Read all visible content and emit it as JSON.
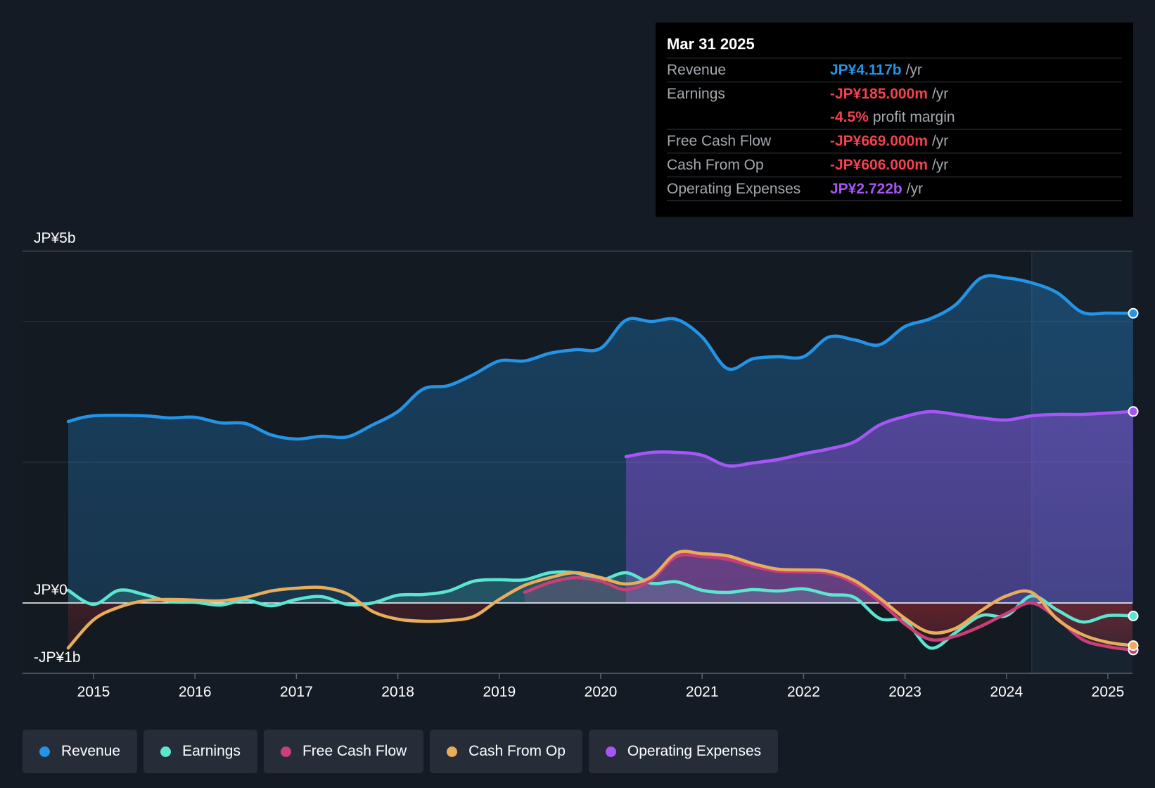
{
  "colors": {
    "revenue": "#2394e6",
    "earnings": "#5ce6cf",
    "fcf": "#c93f7a",
    "cfo": "#e8ad5c",
    "opex": "#a855f7",
    "negative": "#f2424f",
    "muted": "#a4a9b0",
    "background": "#151b24"
  },
  "tooltip": {
    "date": "Mar 31 2025",
    "rows": [
      {
        "label": "Revenue",
        "value": "JP¥4.117b",
        "unit": "/yr",
        "color": "#2394e6"
      },
      {
        "label": "Earnings",
        "value": "-JP¥185.000m",
        "unit": "/yr",
        "color": "#f2424f"
      },
      {
        "label": "",
        "value": "-4.5%",
        "unit": "profit margin",
        "color": "#f2424f"
      },
      {
        "label": "Free Cash Flow",
        "value": "-JP¥669.000m",
        "unit": "/yr",
        "color": "#f2424f"
      },
      {
        "label": "Cash From Op",
        "value": "-JP¥606.000m",
        "unit": "/yr",
        "color": "#f2424f"
      },
      {
        "label": "Operating Expenses",
        "value": "JP¥2.722b",
        "unit": "/yr",
        "color": "#a855f7"
      }
    ]
  },
  "legend": [
    {
      "label": "Revenue",
      "color": "#2394e6"
    },
    {
      "label": "Earnings",
      "color": "#5ce6cf"
    },
    {
      "label": "Free Cash Flow",
      "color": "#c93f7a"
    },
    {
      "label": "Cash From Op",
      "color": "#e8ad5c"
    },
    {
      "label": "Operating Expenses",
      "color": "#a855f7"
    }
  ],
  "chart_data": {
    "type": "line",
    "title": "",
    "xlabel": "",
    "ylabel": "",
    "units": "JP¥ billions",
    "xlim": [
      2014.5,
      2025.25
    ],
    "ylim": [
      -1,
      5
    ],
    "past_region_start": 2024.25,
    "ytick_labels": [
      {
        "value": 5,
        "label": "JP¥5b"
      },
      {
        "value": 0,
        "label": "JP¥0"
      },
      {
        "value": -1,
        "label": "-JP¥1b"
      }
    ],
    "gridlines": [
      5,
      4,
      2,
      -1
    ],
    "xticks": [
      {
        "value": 2015,
        "label": "2015"
      },
      {
        "value": 2016,
        "label": "2016"
      },
      {
        "value": 2017,
        "label": "2017"
      },
      {
        "value": 2018,
        "label": "2018"
      },
      {
        "value": 2019,
        "label": "2019"
      },
      {
        "value": 2020,
        "label": "2020"
      },
      {
        "value": 2021,
        "label": "2021"
      },
      {
        "value": 2022,
        "label": "2022"
      },
      {
        "value": 2023,
        "label": "2023"
      },
      {
        "value": 2024,
        "label": "2024"
      },
      {
        "value": 2025,
        "label": "2025"
      }
    ],
    "series": [
      {
        "key": "revenue",
        "name": "Revenue",
        "points": [
          [
            2014.75,
            2.58
          ],
          [
            2015.0,
            2.66
          ],
          [
            2015.5,
            2.66
          ],
          [
            2015.75,
            2.63
          ],
          [
            2016.0,
            2.64
          ],
          [
            2016.25,
            2.56
          ],
          [
            2016.5,
            2.55
          ],
          [
            2016.75,
            2.39
          ],
          [
            2017.0,
            2.33
          ],
          [
            2017.25,
            2.37
          ],
          [
            2017.5,
            2.36
          ],
          [
            2017.75,
            2.53
          ],
          [
            2018.0,
            2.72
          ],
          [
            2018.25,
            3.04
          ],
          [
            2018.5,
            3.09
          ],
          [
            2018.75,
            3.25
          ],
          [
            2019.0,
            3.44
          ],
          [
            2019.25,
            3.44
          ],
          [
            2019.5,
            3.55
          ],
          [
            2019.75,
            3.6
          ],
          [
            2020.0,
            3.62
          ],
          [
            2020.25,
            4.02
          ],
          [
            2020.5,
            4.0
          ],
          [
            2020.75,
            4.03
          ],
          [
            2021.0,
            3.78
          ],
          [
            2021.25,
            3.33
          ],
          [
            2021.5,
            3.47
          ],
          [
            2021.75,
            3.5
          ],
          [
            2022.0,
            3.5
          ],
          [
            2022.25,
            3.78
          ],
          [
            2022.5,
            3.74
          ],
          [
            2022.75,
            3.67
          ],
          [
            2023.0,
            3.93
          ],
          [
            2023.25,
            4.04
          ],
          [
            2023.5,
            4.24
          ],
          [
            2023.75,
            4.62
          ],
          [
            2024.0,
            4.62
          ],
          [
            2024.25,
            4.55
          ],
          [
            2024.5,
            4.41
          ],
          [
            2024.75,
            4.13
          ],
          [
            2025.0,
            4.12
          ],
          [
            2025.25,
            4.117
          ]
        ]
      },
      {
        "key": "opex",
        "name": "Operating Expenses",
        "points": [
          [
            2020.25,
            2.08
          ],
          [
            2020.5,
            2.14
          ],
          [
            2020.75,
            2.14
          ],
          [
            2021.0,
            2.1
          ],
          [
            2021.25,
            1.95
          ],
          [
            2021.5,
            1.99
          ],
          [
            2021.75,
            2.04
          ],
          [
            2022.0,
            2.12
          ],
          [
            2022.25,
            2.19
          ],
          [
            2022.5,
            2.29
          ],
          [
            2022.75,
            2.53
          ],
          [
            2023.0,
            2.65
          ],
          [
            2023.25,
            2.72
          ],
          [
            2023.5,
            2.68
          ],
          [
            2023.75,
            2.63
          ],
          [
            2024.0,
            2.6
          ],
          [
            2024.25,
            2.66
          ],
          [
            2024.5,
            2.68
          ],
          [
            2024.75,
            2.68
          ],
          [
            2025.0,
            2.7
          ],
          [
            2025.25,
            2.722
          ]
        ]
      },
      {
        "key": "earnings",
        "name": "Earnings",
        "points": [
          [
            2014.75,
            0.18
          ],
          [
            2015.0,
            -0.02
          ],
          [
            2015.25,
            0.18
          ],
          [
            2015.5,
            0.12
          ],
          [
            2015.75,
            0.02
          ],
          [
            2016.0,
            0.01
          ],
          [
            2016.25,
            -0.03
          ],
          [
            2016.5,
            0.04
          ],
          [
            2016.75,
            -0.04
          ],
          [
            2017.0,
            0.05
          ],
          [
            2017.25,
            0.09
          ],
          [
            2017.5,
            -0.02
          ],
          [
            2017.75,
            0.0
          ],
          [
            2018.0,
            0.11
          ],
          [
            2018.25,
            0.12
          ],
          [
            2018.5,
            0.17
          ],
          [
            2018.75,
            0.31
          ],
          [
            2019.0,
            0.33
          ],
          [
            2019.25,
            0.33
          ],
          [
            2019.5,
            0.43
          ],
          [
            2019.75,
            0.43
          ],
          [
            2020.0,
            0.33
          ],
          [
            2020.25,
            0.43
          ],
          [
            2020.5,
            0.28
          ],
          [
            2020.75,
            0.3
          ],
          [
            2021.0,
            0.18
          ],
          [
            2021.25,
            0.15
          ],
          [
            2021.5,
            0.19
          ],
          [
            2021.75,
            0.17
          ],
          [
            2022.0,
            0.2
          ],
          [
            2022.25,
            0.12
          ],
          [
            2022.5,
            0.08
          ],
          [
            2022.75,
            -0.22
          ],
          [
            2023.0,
            -0.26
          ],
          [
            2023.25,
            -0.64
          ],
          [
            2023.5,
            -0.42
          ],
          [
            2023.75,
            -0.18
          ],
          [
            2024.0,
            -0.18
          ],
          [
            2024.25,
            0.1
          ],
          [
            2024.5,
            -0.1
          ],
          [
            2024.75,
            -0.27
          ],
          [
            2025.0,
            -0.18
          ],
          [
            2025.25,
            -0.185
          ]
        ]
      },
      {
        "key": "fcf",
        "name": "Free Cash Flow",
        "points": [
          [
            2019.25,
            0.15
          ],
          [
            2019.5,
            0.29
          ],
          [
            2019.75,
            0.36
          ],
          [
            2020.0,
            0.31
          ],
          [
            2020.25,
            0.19
          ],
          [
            2020.5,
            0.33
          ],
          [
            2020.75,
            0.66
          ],
          [
            2021.0,
            0.66
          ],
          [
            2021.25,
            0.62
          ],
          [
            2021.5,
            0.52
          ],
          [
            2021.75,
            0.45
          ],
          [
            2022.0,
            0.44
          ],
          [
            2022.25,
            0.42
          ],
          [
            2022.5,
            0.28
          ],
          [
            2022.75,
            0.02
          ],
          [
            2023.0,
            -0.3
          ],
          [
            2023.25,
            -0.52
          ],
          [
            2023.5,
            -0.47
          ],
          [
            2023.75,
            -0.33
          ],
          [
            2024.0,
            -0.15
          ],
          [
            2024.25,
            0.0
          ],
          [
            2024.5,
            -0.22
          ],
          [
            2024.75,
            -0.52
          ],
          [
            2025.0,
            -0.62
          ],
          [
            2025.25,
            -0.669
          ]
        ]
      },
      {
        "key": "cfo",
        "name": "Cash From Op",
        "points": [
          [
            2014.75,
            -0.64
          ],
          [
            2015.0,
            -0.24
          ],
          [
            2015.25,
            -0.06
          ],
          [
            2015.5,
            0.03
          ],
          [
            2015.75,
            0.05
          ],
          [
            2016.0,
            0.04
          ],
          [
            2016.25,
            0.03
          ],
          [
            2016.5,
            0.08
          ],
          [
            2016.75,
            0.17
          ],
          [
            2017.0,
            0.21
          ],
          [
            2017.25,
            0.22
          ],
          [
            2017.5,
            0.13
          ],
          [
            2017.75,
            -0.12
          ],
          [
            2018.0,
            -0.23
          ],
          [
            2018.25,
            -0.26
          ],
          [
            2018.5,
            -0.25
          ],
          [
            2018.75,
            -0.19
          ],
          [
            2019.0,
            0.05
          ],
          [
            2019.25,
            0.25
          ],
          [
            2019.5,
            0.36
          ],
          [
            2019.75,
            0.43
          ],
          [
            2020.0,
            0.36
          ],
          [
            2020.25,
            0.27
          ],
          [
            2020.5,
            0.37
          ],
          [
            2020.75,
            0.71
          ],
          [
            2021.0,
            0.7
          ],
          [
            2021.25,
            0.67
          ],
          [
            2021.5,
            0.56
          ],
          [
            2021.75,
            0.48
          ],
          [
            2022.0,
            0.47
          ],
          [
            2022.25,
            0.45
          ],
          [
            2022.5,
            0.32
          ],
          [
            2022.75,
            0.07
          ],
          [
            2023.0,
            -0.22
          ],
          [
            2023.25,
            -0.42
          ],
          [
            2023.5,
            -0.36
          ],
          [
            2023.75,
            -0.11
          ],
          [
            2024.0,
            0.1
          ],
          [
            2024.25,
            0.15
          ],
          [
            2024.5,
            -0.23
          ],
          [
            2024.75,
            -0.45
          ],
          [
            2025.0,
            -0.56
          ],
          [
            2025.25,
            -0.606
          ]
        ]
      }
    ]
  }
}
